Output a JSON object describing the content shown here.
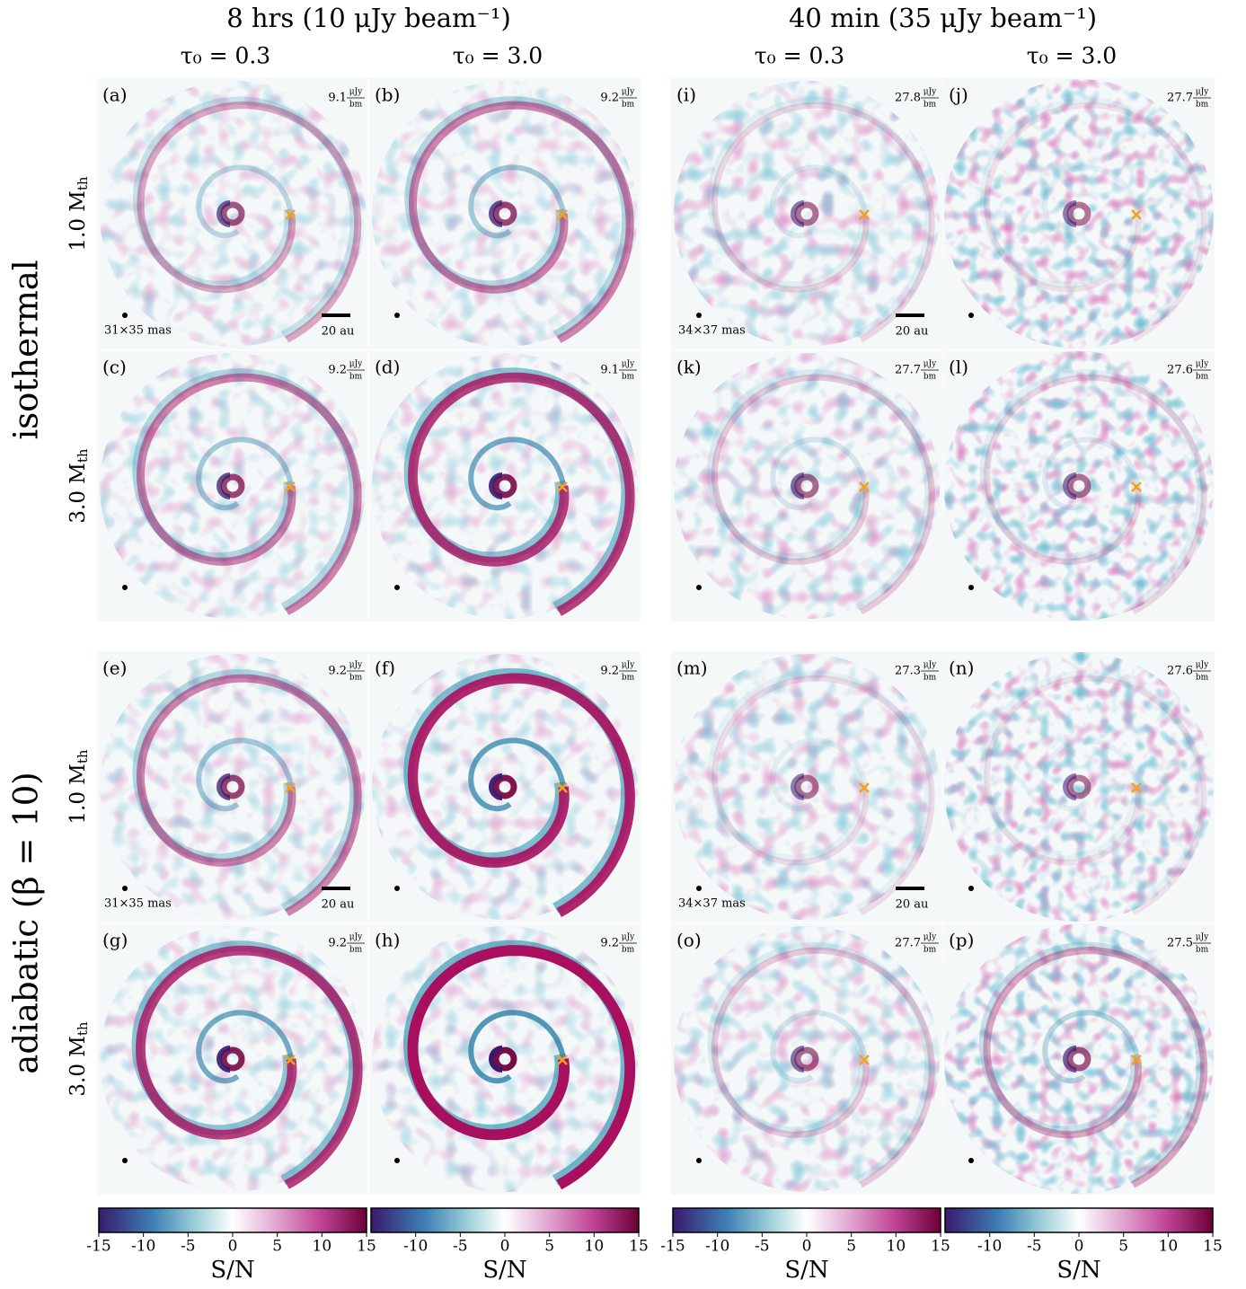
{
  "columns": [
    {
      "header": "8 hrs (10 μJy beam⁻¹)",
      "subcolumns": [
        "τ₀ = 0.3",
        "τ₀ = 3.0"
      ]
    },
    {
      "header": "40 min (35 μJy beam⁻¹)",
      "subcolumns": [
        "τ₀ = 0.3",
        "τ₀ = 3.0"
      ]
    }
  ],
  "rows": [
    {
      "label": "isothermal",
      "masses": [
        {
          "text": "1.0 M",
          "sub": "th"
        },
        {
          "text": "3.0 M",
          "sub": "th"
        }
      ]
    },
    {
      "label": "adiabatic (β = 10)",
      "masses": [
        {
          "text": "1.0 M",
          "sub": "th"
        },
        {
          "text": "3.0 M",
          "sub": "th"
        }
      ]
    }
  ],
  "noise_unit": {
    "num": "μJy",
    "den": "bm"
  },
  "panels": [
    {
      "label": "(a)",
      "noise": 9.1,
      "beam": "31×35 mas",
      "scale": "20 au"
    },
    {
      "label": "(b)",
      "noise": 9.2
    },
    {
      "label": "(c)",
      "noise": 9.2
    },
    {
      "label": "(d)",
      "noise": 9.1
    },
    {
      "label": "(e)",
      "noise": 9.2,
      "beam": "31×35 mas",
      "scale": "20 au"
    },
    {
      "label": "(f)",
      "noise": 9.2
    },
    {
      "label": "(g)",
      "noise": 9.2
    },
    {
      "label": "(h)",
      "noise": 9.2
    },
    {
      "label": "(i)",
      "noise": 27.8,
      "beam": "34×37 mas",
      "scale": "20 au"
    },
    {
      "label": "(j)",
      "noise": 27.7
    },
    {
      "label": "(k)",
      "noise": 27.7
    },
    {
      "label": "(l)",
      "noise": 27.6
    },
    {
      "label": "(m)",
      "noise": 27.3,
      "beam": "34×37 mas",
      "scale": "20 au"
    },
    {
      "label": "(n)",
      "noise": 27.6
    },
    {
      "label": "(o)",
      "noise": 27.7
    },
    {
      "label": "(p)",
      "noise": 27.5
    }
  ],
  "colorbars": [
    {
      "label": "S/N",
      "lim": [
        -15,
        15
      ],
      "ticks": [
        -15,
        -10,
        -5,
        0,
        5,
        10,
        15
      ]
    },
    {
      "label": "S/N",
      "lim": [
        -15,
        15
      ],
      "ticks": [
        -10,
        -5,
        0,
        5,
        10,
        15
      ]
    },
    {
      "label": "S/N",
      "lim": [
        -15,
        15
      ],
      "ticks": [
        -15,
        -10,
        -5,
        0,
        5,
        10,
        15
      ]
    },
    {
      "label": "S/N",
      "lim": [
        -15,
        15
      ],
      "ticks": [
        -10,
        -5,
        0,
        5,
        10,
        15
      ]
    }
  ]
}
